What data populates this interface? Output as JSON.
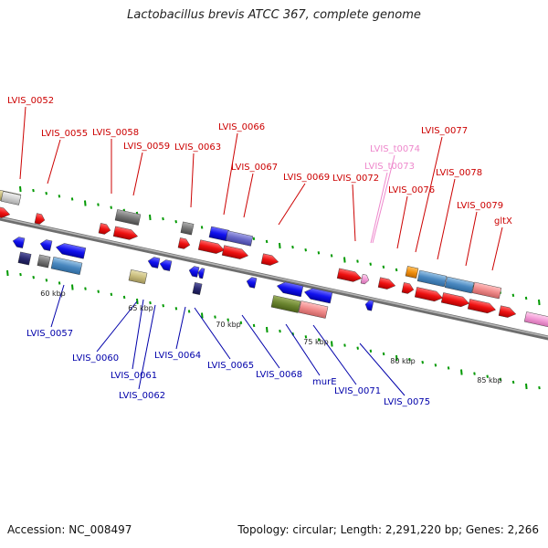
{
  "title": "Lactobacillus brevis ATCC 367, complete genome",
  "footer": {
    "accession": "Accession: NC_008497",
    "topology": "Topology: circular; Length: 2,291,220 bp; Genes: 2,266"
  },
  "scale_labels": [
    "60 kbp",
    "65 kbp",
    "70 kbp",
    "75 kbp",
    "80 kbp",
    "85 kbp"
  ],
  "gene_labels_forward": [
    "LVIS_0052",
    "LVIS_0055",
    "LVIS_0058",
    "LVIS_0059",
    "LVIS_0063",
    "LVIS_0066",
    "LVIS_0067",
    "LVIS_0069",
    "LVIS_0072",
    "LVIS_0076",
    "LVIS_0077",
    "LVIS_0078",
    "LVIS_0079",
    "gltX"
  ],
  "trna_labels": [
    "LVIS_t0074",
    "LVIS_t0073"
  ],
  "gene_labels_reverse": [
    "LVIS_0057",
    "LVIS_0060",
    "LVIS_0061",
    "LVIS_0062",
    "LVIS_0064",
    "LVIS_0065",
    "LVIS_0068",
    "murE",
    "LVIS_0071",
    "LVIS_0075"
  ],
  "colors": {
    "forward_label": "#cc0000",
    "reverse_label": "#0000aa",
    "trna_label": "#ee88cc",
    "backbone": "#888888",
    "tick": "#009900"
  }
}
